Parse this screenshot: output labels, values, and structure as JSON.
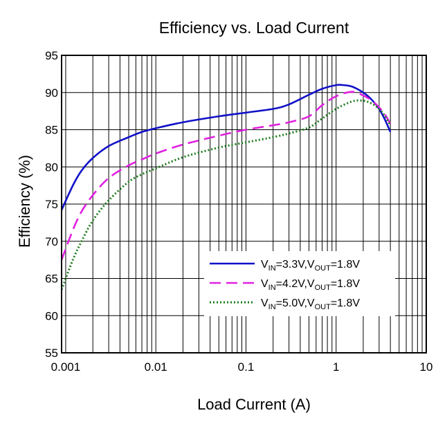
{
  "chart_data": {
    "type": "line",
    "title": "Efficiency vs. Load Current",
    "xlabel": "Load Current (A)",
    "ylabel": "Efficiency (%)",
    "xscale": "log",
    "xlim": [
      0.0009,
      10
    ],
    "ylim": [
      55,
      95
    ],
    "x_ticks": [
      0.001,
      0.01,
      0.1,
      1,
      10
    ],
    "x_tick_labels": [
      "0.001",
      "0.01",
      "0.1",
      "1",
      "10"
    ],
    "y_ticks": [
      55,
      60,
      65,
      70,
      75,
      80,
      85,
      90,
      95
    ],
    "y_tick_labels": [
      "55",
      "60",
      "65",
      "70",
      "75",
      "80",
      "85",
      "90",
      "95"
    ],
    "grid": true,
    "legend_position": "bottom-right",
    "series": [
      {
        "name_parts": [
          "V",
          "IN",
          "=3.3V,V",
          "OUT",
          "=1.8V"
        ],
        "color": "#1010c8",
        "style": "solid",
        "x": [
          0.0009,
          0.0012,
          0.0015,
          0.002,
          0.003,
          0.005,
          0.007,
          0.01,
          0.02,
          0.05,
          0.1,
          0.2,
          0.3,
          0.5,
          0.7,
          1.0,
          1.2,
          1.5,
          2,
          2.5,
          3,
          3.5,
          4
        ],
        "y": [
          74.2,
          77.5,
          79.5,
          81.2,
          82.8,
          84.0,
          84.7,
          85.2,
          86.0,
          86.8,
          87.3,
          87.8,
          88.4,
          89.7,
          90.5,
          91.0,
          91.0,
          90.8,
          90.0,
          89.0,
          87.8,
          86.3,
          84.7
        ]
      },
      {
        "name_parts": [
          "V",
          "IN",
          "=4.2V,V",
          "OUT",
          "=1.8V"
        ],
        "color": "#e020e0",
        "style": "dashed",
        "x": [
          0.0009,
          0.0012,
          0.0015,
          0.002,
          0.003,
          0.005,
          0.007,
          0.01,
          0.02,
          0.05,
          0.1,
          0.2,
          0.3,
          0.5,
          0.7,
          1.0,
          1.5,
          2,
          2.5,
          3,
          3.5,
          4
        ],
        "y": [
          67.5,
          71.5,
          74.0,
          76.2,
          78.5,
          80.2,
          81.0,
          81.8,
          83.0,
          84.2,
          85.0,
          85.6,
          86.0,
          86.8,
          88.3,
          89.5,
          90.1,
          89.6,
          88.9,
          88.0,
          87.0,
          85.8
        ]
      },
      {
        "name_parts": [
          "V",
          "IN",
          "=5.0V,V",
          "OUT",
          "=1.8V"
        ],
        "color": "#1a7a1a",
        "style": "dotted",
        "x": [
          0.0009,
          0.0012,
          0.0015,
          0.002,
          0.003,
          0.005,
          0.007,
          0.01,
          0.02,
          0.05,
          0.1,
          0.2,
          0.3,
          0.5,
          0.7,
          1.0,
          1.5,
          2,
          2.5,
          3,
          3.5,
          4
        ],
        "y": [
          63.5,
          67.5,
          70.0,
          72.8,
          75.5,
          78.0,
          79.0,
          79.8,
          81.3,
          82.6,
          83.3,
          84.0,
          84.5,
          85.3,
          86.5,
          87.8,
          88.8,
          88.9,
          88.5,
          87.8,
          86.8,
          85.6
        ]
      }
    ]
  }
}
